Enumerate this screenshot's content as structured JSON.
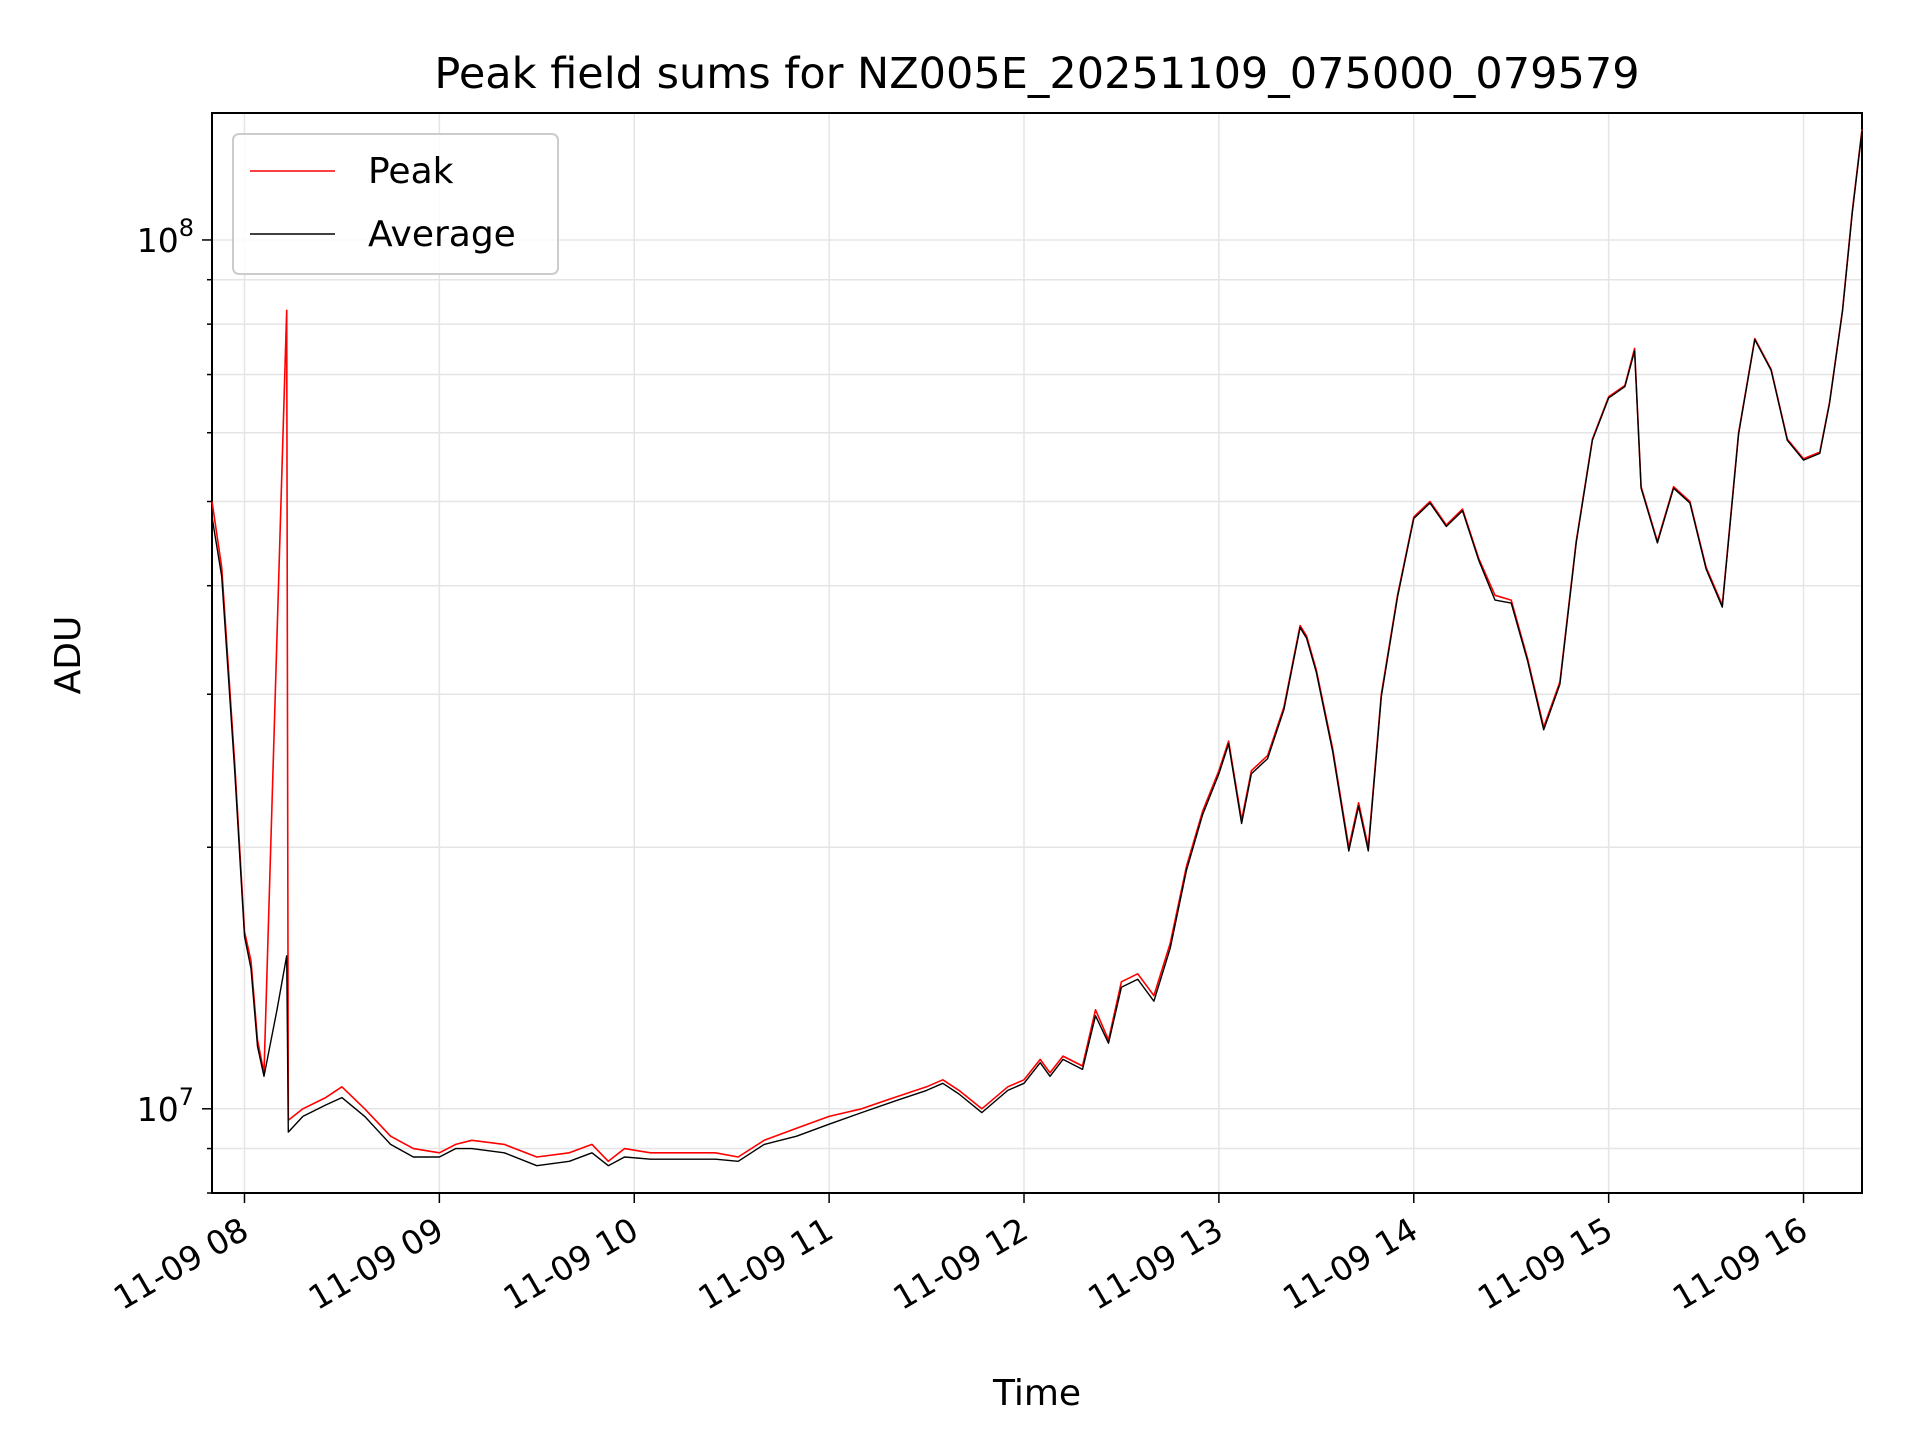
{
  "chart_data": {
    "type": "line",
    "title": "Peak field sums for NZ005E_20251109_075000_079579",
    "xlabel": "Time",
    "ylabel": "ADU",
    "yscale": "log",
    "grid": true,
    "legend_position": "top-left",
    "x_tick_labels": [
      "11-09 08",
      "11-09 09",
      "11-09 10",
      "11-09 11",
      "11-09 12",
      "11-09 13",
      "11-09 14",
      "11-09 15",
      "11-09 16"
    ],
    "y_tick_labels": [
      {
        "value": 10000000,
        "mantissa": "10",
        "exponent": "7"
      },
      {
        "value": 100000000,
        "mantissa": "10",
        "exponent": "8"
      }
    ],
    "xlim": [
      "11-09 07:50",
      "11-09 16:18"
    ],
    "ylim": [
      8000000,
      140000000
    ],
    "series": [
      {
        "name": "Peak",
        "color": "#ff0000",
        "points": [
          [
            "07:50",
            50000000
          ],
          [
            "07:53",
            42000000
          ],
          [
            "07:57",
            25000000
          ],
          [
            "08:00",
            16000000
          ],
          [
            "08:02",
            14800000
          ],
          [
            "08:04",
            12000000
          ],
          [
            "08:06",
            11000000
          ],
          [
            "08:10",
            35000000
          ],
          [
            "08:13",
            83000000
          ],
          [
            "08:13.5",
            9700000
          ],
          [
            "08:18",
            10000000
          ],
          [
            "08:25",
            10300000
          ],
          [
            "08:30",
            10600000
          ],
          [
            "08:37",
            10000000
          ],
          [
            "08:45",
            9300000
          ],
          [
            "08:52",
            9000000
          ],
          [
            "09:00",
            8900000
          ],
          [
            "09:05",
            9100000
          ],
          [
            "09:10",
            9200000
          ],
          [
            "09:20",
            9100000
          ],
          [
            "09:30",
            8800000
          ],
          [
            "09:40",
            8900000
          ],
          [
            "09:47",
            9100000
          ],
          [
            "09:52",
            8700000
          ],
          [
            "09:57",
            9000000
          ],
          [
            "10:05",
            8900000
          ],
          [
            "10:15",
            8900000
          ],
          [
            "10:25",
            8900000
          ],
          [
            "10:32",
            8800000
          ],
          [
            "10:40",
            9200000
          ],
          [
            "10:50",
            9500000
          ],
          [
            "11:00",
            9800000
          ],
          [
            "11:10",
            10000000
          ],
          [
            "11:20",
            10300000
          ],
          [
            "11:30",
            10600000
          ],
          [
            "11:35",
            10800000
          ],
          [
            "11:40",
            10500000
          ],
          [
            "11:47",
            10000000
          ],
          [
            "11:55",
            10600000
          ],
          [
            "12:00",
            10800000
          ],
          [
            "12:05",
            11400000
          ],
          [
            "12:08",
            11000000
          ],
          [
            "12:12",
            11500000
          ],
          [
            "12:18",
            11200000
          ],
          [
            "12:22",
            13000000
          ],
          [
            "12:26",
            12000000
          ],
          [
            "12:30",
            14000000
          ],
          [
            "12:35",
            14300000
          ],
          [
            "12:40",
            13500000
          ],
          [
            "12:45",
            15500000
          ],
          [
            "12:50",
            19000000
          ],
          [
            "12:55",
            22000000
          ],
          [
            "13:00",
            24500000
          ],
          [
            "13:03",
            26500000
          ],
          [
            "13:07",
            21500000
          ],
          [
            "13:10",
            24500000
          ],
          [
            "13:15",
            25500000
          ],
          [
            "13:20",
            29000000
          ],
          [
            "13:25",
            36000000
          ],
          [
            "13:27",
            35000000
          ],
          [
            "13:30",
            32000000
          ],
          [
            "13:35",
            26000000
          ],
          [
            "13:40",
            20000000
          ],
          [
            "13:43",
            22500000
          ],
          [
            "13:46",
            20000000
          ],
          [
            "13:50",
            30000000
          ],
          [
            "13:55",
            39000000
          ],
          [
            "14:00",
            48000000
          ],
          [
            "14:05",
            50000000
          ],
          [
            "14:10",
            47000000
          ],
          [
            "14:15",
            49000000
          ],
          [
            "14:20",
            43000000
          ],
          [
            "14:25",
            39000000
          ],
          [
            "14:30",
            38500000
          ],
          [
            "14:35",
            33000000
          ],
          [
            "14:40",
            27500000
          ],
          [
            "14:45",
            31000000
          ],
          [
            "14:50",
            45000000
          ],
          [
            "14:55",
            59000000
          ],
          [
            "15:00",
            66000000
          ],
          [
            "15:05",
            68000000
          ],
          [
            "15:08",
            75000000
          ],
          [
            "15:10",
            52000000
          ],
          [
            "15:15",
            45000000
          ],
          [
            "15:20",
            52000000
          ],
          [
            "15:25",
            50000000
          ],
          [
            "15:30",
            42000000
          ],
          [
            "15:35",
            38000000
          ],
          [
            "15:40",
            60000000
          ],
          [
            "15:45",
            77000000
          ],
          [
            "15:50",
            71000000
          ],
          [
            "15:55",
            59000000
          ],
          [
            "16:00",
            56000000
          ],
          [
            "16:05",
            57000000
          ],
          [
            "16:08",
            65000000
          ],
          [
            "16:12",
            83000000
          ],
          [
            "16:15",
            108000000
          ],
          [
            "16:18",
            134000000
          ]
        ]
      },
      {
        "name": "Average",
        "color": "#000000",
        "points": [
          [
            "07:50",
            48000000
          ],
          [
            "07:53",
            41000000
          ],
          [
            "07:57",
            24500000
          ],
          [
            "08:00",
            15800000
          ],
          [
            "08:02",
            14500000
          ],
          [
            "08:04",
            11800000
          ],
          [
            "08:06",
            10900000
          ],
          [
            "08:10",
            13000000
          ],
          [
            "08:13",
            15000000
          ],
          [
            "08:13.5",
            9400000
          ],
          [
            "08:18",
            9800000
          ],
          [
            "08:25",
            10100000
          ],
          [
            "08:30",
            10300000
          ],
          [
            "08:37",
            9800000
          ],
          [
            "08:45",
            9100000
          ],
          [
            "08:52",
            8800000
          ],
          [
            "09:00",
            8800000
          ],
          [
            "09:05",
            9000000
          ],
          [
            "09:10",
            9000000
          ],
          [
            "09:20",
            8900000
          ],
          [
            "09:30",
            8600000
          ],
          [
            "09:40",
            8700000
          ],
          [
            "09:47",
            8900000
          ],
          [
            "09:52",
            8600000
          ],
          [
            "09:57",
            8800000
          ],
          [
            "10:05",
            8750000
          ],
          [
            "10:15",
            8750000
          ],
          [
            "10:25",
            8750000
          ],
          [
            "10:32",
            8700000
          ],
          [
            "10:40",
            9100000
          ],
          [
            "10:50",
            9300000
          ],
          [
            "11:00",
            9600000
          ],
          [
            "11:10",
            9900000
          ],
          [
            "11:20",
            10200000
          ],
          [
            "11:30",
            10500000
          ],
          [
            "11:35",
            10700000
          ],
          [
            "11:40",
            10400000
          ],
          [
            "11:47",
            9900000
          ],
          [
            "11:55",
            10500000
          ],
          [
            "12:00",
            10700000
          ],
          [
            "12:05",
            11300000
          ],
          [
            "12:08",
            10900000
          ],
          [
            "12:12",
            11400000
          ],
          [
            "12:18",
            11100000
          ],
          [
            "12:22",
            12800000
          ],
          [
            "12:26",
            11900000
          ],
          [
            "12:30",
            13800000
          ],
          [
            "12:35",
            14100000
          ],
          [
            "12:40",
            13300000
          ],
          [
            "12:45",
            15300000
          ],
          [
            "12:50",
            18800000
          ],
          [
            "12:55",
            21800000
          ],
          [
            "13:00",
            24300000
          ],
          [
            "13:03",
            26300000
          ],
          [
            "13:07",
            21300000
          ],
          [
            "13:10",
            24300000
          ],
          [
            "13:15",
            25300000
          ],
          [
            "13:20",
            28800000
          ],
          [
            "13:25",
            35800000
          ],
          [
            "13:27",
            34800000
          ],
          [
            "13:30",
            31800000
          ],
          [
            "13:35",
            25800000
          ],
          [
            "13:40",
            19800000
          ],
          [
            "13:43",
            22300000
          ],
          [
            "13:46",
            19800000
          ],
          [
            "13:50",
            29800000
          ],
          [
            "13:55",
            38800000
          ],
          [
            "14:00",
            47800000
          ],
          [
            "14:05",
            49800000
          ],
          [
            "14:10",
            46800000
          ],
          [
            "14:15",
            48800000
          ],
          [
            "14:20",
            42800000
          ],
          [
            "14:25",
            38500000
          ],
          [
            "14:30",
            38200000
          ],
          [
            "14:35",
            32800000
          ],
          [
            "14:40",
            27300000
          ],
          [
            "14:45",
            30800000
          ],
          [
            "14:50",
            44800000
          ],
          [
            "14:55",
            58800000
          ],
          [
            "15:00",
            65800000
          ],
          [
            "15:05",
            67800000
          ],
          [
            "15:08",
            74500000
          ],
          [
            "15:10",
            51800000
          ],
          [
            "15:15",
            44800000
          ],
          [
            "15:20",
            51800000
          ],
          [
            "15:25",
            49800000
          ],
          [
            "15:30",
            41800000
          ],
          [
            "15:35",
            37800000
          ],
          [
            "15:40",
            59800000
          ],
          [
            "15:45",
            76800000
          ],
          [
            "15:50",
            70800000
          ],
          [
            "15:55",
            58800000
          ],
          [
            "16:00",
            55800000
          ],
          [
            "16:05",
            56800000
          ],
          [
            "16:08",
            64800000
          ],
          [
            "16:12",
            82800000
          ],
          [
            "16:15",
            107500000
          ],
          [
            "16:18",
            133500000
          ]
        ]
      }
    ]
  }
}
